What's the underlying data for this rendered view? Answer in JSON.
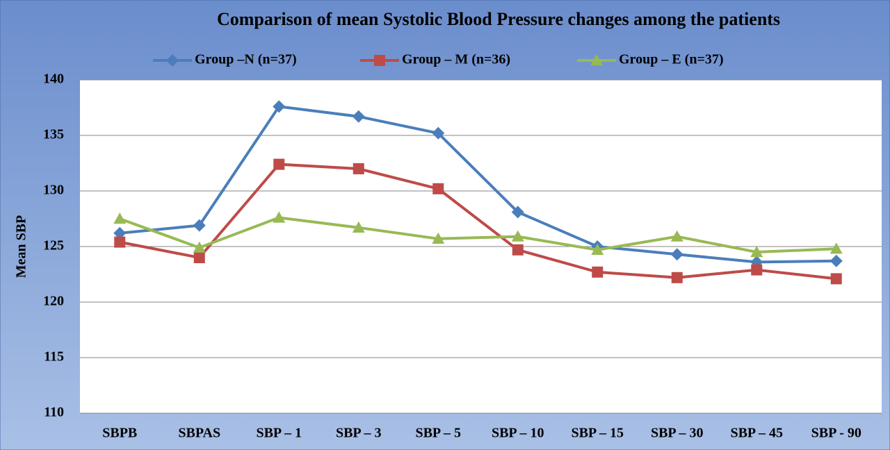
{
  "chart_data": {
    "type": "line",
    "title": "Comparison of mean Systolic Blood Pressure changes among the patients",
    "y_label": "Mean SBP",
    "categories": [
      "SBPB",
      "SBPAS",
      "SBP – 1",
      "SBP – 3",
      "SBP – 5",
      "SBP – 10",
      "SBP – 15",
      "SBP – 30",
      "SBP – 45",
      "SBP - 90"
    ],
    "series": [
      {
        "name": "Group –N (n=37)",
        "color": "#4a7ebb",
        "marker": "diamond",
        "values": [
          126.2,
          126.9,
          137.6,
          136.7,
          135.2,
          128.1,
          125.0,
          124.3,
          123.6,
          123.7
        ]
      },
      {
        "name": "Group – M (n=36)",
        "color": "#be4b48",
        "marker": "square",
        "values": [
          125.4,
          124.0,
          132.4,
          132.0,
          130.2,
          124.7,
          122.7,
          122.2,
          122.9,
          122.1
        ]
      },
      {
        "name": "Group – E (n=37)",
        "color": "#98b954",
        "marker": "triangle",
        "values": [
          127.5,
          124.9,
          127.6,
          126.7,
          125.7,
          125.9,
          124.7,
          125.9,
          124.5,
          124.8
        ]
      }
    ],
    "ylim": [
      110,
      140
    ],
    "yticks": [
      110,
      115,
      120,
      125,
      130,
      135,
      140
    ],
    "grid": true,
    "legend": "top"
  }
}
